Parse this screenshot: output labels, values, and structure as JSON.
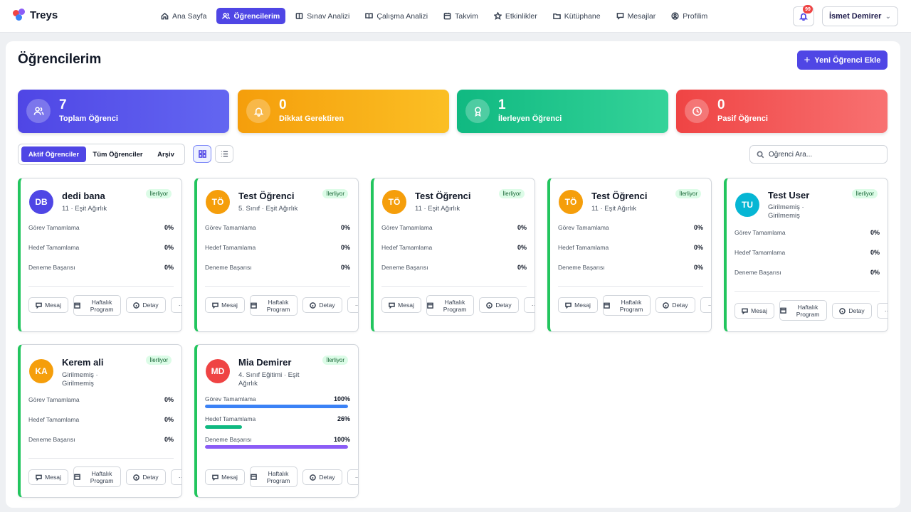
{
  "app": {
    "name": "Treys"
  },
  "nav": {
    "items": [
      {
        "label": "Ana Sayfa",
        "icon": "home-icon"
      },
      {
        "label": "Öğrencilerim",
        "icon": "users-icon",
        "active": true
      },
      {
        "label": "Sınav Analizi",
        "icon": "book-icon"
      },
      {
        "label": "Çalışma Analizi",
        "icon": "book-open-icon"
      },
      {
        "label": "Takvim",
        "icon": "calendar-icon"
      },
      {
        "label": "Etkinlikler",
        "icon": "star-icon"
      },
      {
        "label": "Kütüphane",
        "icon": "folder-icon"
      },
      {
        "label": "Mesajlar",
        "icon": "chat-icon"
      },
      {
        "label": "Profilim",
        "icon": "user-circle-icon"
      }
    ],
    "notification_count": "99",
    "user_name": "İsmet Demirer"
  },
  "page": {
    "title": "Öğrencilerim",
    "add_button": "Yeni Öğrenci Ekle"
  },
  "stats": [
    {
      "value": "7",
      "label": "Toplam Öğrenci",
      "color": "#4f46e5",
      "icon": "users-icon"
    },
    {
      "value": "0",
      "label": "Dikkat Gerektiren",
      "color": "#f59e0b",
      "icon": "bell-icon"
    },
    {
      "value": "1",
      "label": "İlerleyen Öğrenci",
      "color": "#10b981",
      "icon": "award-icon"
    },
    {
      "value": "0",
      "label": "Pasif Öğrenci",
      "color": "#ef4444",
      "icon": "clock-icon"
    }
  ],
  "filters": {
    "tabs": [
      "Aktif Öğrenciler",
      "Tüm Öğrenciler",
      "Arşiv"
    ],
    "search_placeholder": "Öğrenci Ara..."
  },
  "metric_labels": [
    "Görev Tamamlama",
    "Hedef Tamamlama",
    "Deneme Başarısı"
  ],
  "actions": {
    "message": "Mesaj",
    "weekly": "Haftalık Program",
    "detail": "Detay",
    "more": "···"
  },
  "students": [
    {
      "initials": "DB",
      "name": "dedi bana",
      "sub": "11 · Eşit Ağırlık",
      "status": "İlerliyor",
      "avatar_color": "#4f46e5",
      "metrics": [
        "0%",
        "0%",
        "0%"
      ]
    },
    {
      "initials": "TÖ",
      "name": "Test Öğrenci",
      "sub": "5. Sınıf · Eşit Ağırlık",
      "status": "İlerliyor",
      "avatar_color": "#f59e0b",
      "metrics": [
        "0%",
        "0%",
        "0%"
      ]
    },
    {
      "initials": "TÖ",
      "name": "Test Öğrenci",
      "sub": "11 · Eşit Ağırlık",
      "status": "İlerliyor",
      "avatar_color": "#f59e0b",
      "metrics": [
        "0%",
        "0%",
        "0%"
      ]
    },
    {
      "initials": "TÖ",
      "name": "Test Öğrenci",
      "sub": "11 · Eşit Ağırlık",
      "status": "İlerliyor",
      "avatar_color": "#f59e0b",
      "metrics": [
        "0%",
        "0%",
        "0%"
      ]
    },
    {
      "initials": "TU",
      "name": "Test User",
      "sub": "Girilmemiş · Girilmemiş",
      "status": "İlerliyor",
      "avatar_color": "#06b6d4",
      "metrics": [
        "0%",
        "0%",
        "0%"
      ]
    },
    {
      "initials": "KA",
      "name": "Kerem ali",
      "sub": "Girilmemiş · Girilmemiş",
      "status": "İlerliyor",
      "avatar_color": "#f59e0b",
      "metrics": [
        "0%",
        "0%",
        "0%"
      ]
    },
    {
      "initials": "MD",
      "name": "Mia Demirer",
      "sub": "4. Sınıf Eğitimi · Eşit Ağırlık",
      "status": "İlerliyor",
      "avatar_color": "#ef4444",
      "metrics": [
        "100%",
        "26%",
        "100%"
      ],
      "bar_fractions": [
        1.0,
        0.26,
        1.0
      ],
      "bar_colors": [
        "#3b82f6",
        "#10b981",
        "#8b5cf6"
      ]
    }
  ]
}
